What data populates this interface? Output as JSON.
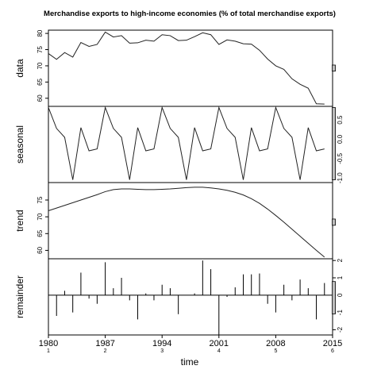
{
  "chart_data": {
    "type": "line",
    "title": "Merchandise exports to high-income economies (% of total merchandise exports)",
    "xlabel": "time",
    "x_ticks": [
      1980,
      1987,
      1994,
      2001,
      2008,
      2015
    ],
    "x_tick_periods": [
      "1",
      "2",
      "3",
      "4",
      "5",
      "6"
    ],
    "xlim": [
      1980,
      2015
    ],
    "x": [
      1980,
      1981,
      1982,
      1983,
      1984,
      1985,
      1986,
      1987,
      1988,
      1989,
      1990,
      1991,
      1992,
      1993,
      1994,
      1995,
      1996,
      1997,
      1998,
      1999,
      2000,
      2001,
      2002,
      2003,
      2004,
      2005,
      2006,
      2007,
      2008,
      2009,
      2010,
      2011,
      2012,
      2013,
      2014
    ],
    "panels": [
      {
        "name": "data",
        "label": "data",
        "ylim": [
          57.5,
          81
        ],
        "yticks": [
          60,
          65,
          70,
          75,
          80
        ],
        "ytick_side": "left",
        "style": "line",
        "values": [
          73.8,
          72.0,
          74.1,
          72.7,
          77.2,
          76.0,
          76.6,
          80.4,
          78.9,
          79.3,
          77.0,
          77.1,
          77.9,
          77.6,
          79.6,
          79.3,
          77.8,
          77.9,
          79.0,
          80.2,
          79.6,
          76.6,
          78.0,
          77.6,
          76.8,
          76.7,
          74.8,
          72.1,
          70.0,
          68.9,
          66.0,
          64.3,
          63.1,
          58.3,
          58.2
        ]
      },
      {
        "name": "seasonal",
        "label": "seasonal",
        "ylim": [
          -1.12,
          0.85
        ],
        "yticks": [
          -1.0,
          -0.5,
          0.0,
          0.5
        ],
        "ytick_labels": [
          "-1.0",
          "-0.5",
          "0.0",
          "0.5"
        ],
        "ytick_side": "right",
        "style": "line",
        "values": [
          0.82,
          0.28,
          0.05,
          -1.05,
          0.3,
          -0.3,
          -0.25,
          0.82,
          0.28,
          0.05,
          -1.05,
          0.3,
          -0.3,
          -0.25,
          0.82,
          0.28,
          0.05,
          -1.05,
          0.3,
          -0.3,
          -0.25,
          0.82,
          0.28,
          0.05,
          -1.05,
          0.3,
          -0.3,
          -0.25,
          0.82,
          0.28,
          0.05,
          -1.05,
          0.3,
          -0.3,
          -0.25
        ]
      },
      {
        "name": "trend",
        "label": "trend",
        "ylim": [
          57.5,
          80.2
        ],
        "yticks": [
          60,
          65,
          70,
          75
        ],
        "ytick_side": "left",
        "style": "line",
        "values": [
          71.8,
          72.6,
          73.4,
          74.2,
          75.0,
          75.8,
          76.6,
          77.5,
          78.1,
          78.3,
          78.3,
          78.2,
          78.1,
          78.1,
          78.2,
          78.3,
          78.5,
          78.7,
          78.8,
          78.8,
          78.6,
          78.3,
          77.9,
          77.3,
          76.5,
          75.4,
          74.0,
          72.3,
          70.4,
          68.4,
          66.3,
          64.2,
          62.1,
          60.0,
          58.0
        ]
      },
      {
        "name": "remainder",
        "label": "remainder",
        "ylim": [
          -2.3,
          2.1
        ],
        "yticks": [
          -2,
          -1,
          0,
          1,
          2
        ],
        "ytick_labels": [
          "-2",
          "-1",
          "0",
          "1",
          "2"
        ],
        "ytick_side": "right",
        "style": "bars",
        "values": [
          1.0,
          -1.2,
          0.25,
          -1.0,
          1.3,
          -0.2,
          -0.5,
          1.9,
          0.4,
          1.0,
          -0.3,
          -1.4,
          0.1,
          -0.3,
          0.6,
          0.4,
          -1.1,
          0.0,
          0.1,
          2.0,
          1.5,
          -2.3,
          -0.1,
          0.45,
          1.2,
          1.2,
          1.25,
          -0.5,
          -1.0,
          0.6,
          -0.3,
          0.9,
          0.4,
          -1.4,
          0.7
        ]
      }
    ],
    "range_bars": true
  }
}
